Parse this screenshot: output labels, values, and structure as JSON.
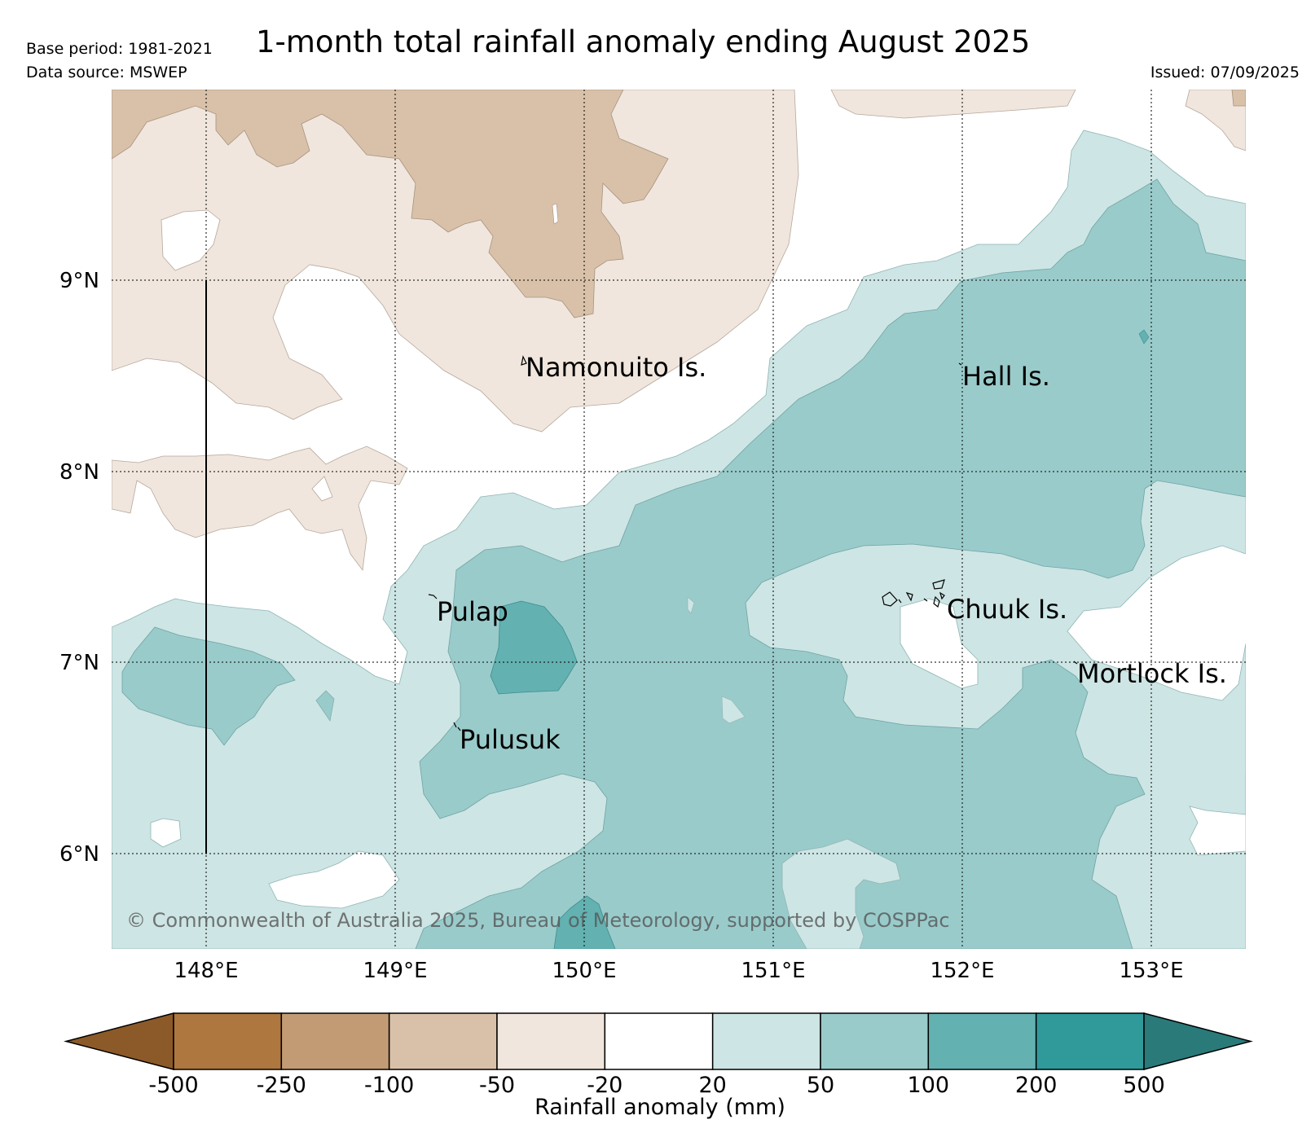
{
  "header": {
    "title": "1-month total rainfall anomaly ending August 2025",
    "base_period": "Base period: 1981-2021",
    "data_source": "Data source: MSWEP",
    "issued": "Issued: 07/09/2025"
  },
  "map": {
    "lat_range": [
      5.5,
      10.0
    ],
    "lon_range": [
      147.5,
      153.5
    ],
    "lat_ticks": [
      {
        "value": 9,
        "label": "9°N"
      },
      {
        "value": 8,
        "label": "8°N"
      },
      {
        "value": 7,
        "label": "7°N"
      },
      {
        "value": 6,
        "label": "6°N"
      }
    ],
    "lon_ticks": [
      {
        "value": 148,
        "label": "148°E"
      },
      {
        "value": 149,
        "label": "149°E"
      },
      {
        "value": 150,
        "label": "150°E"
      },
      {
        "value": 151,
        "label": "151°E"
      },
      {
        "value": 152,
        "label": "152°E"
      },
      {
        "value": 153,
        "label": "153°E"
      }
    ],
    "places": [
      {
        "name": "Namonuito Is."
      },
      {
        "name": "Hall Is."
      },
      {
        "name": "Pulap"
      },
      {
        "name": "Chuuk Is."
      },
      {
        "name": "Mortlock Is."
      },
      {
        "name": "Pulusuk"
      }
    ],
    "copyright": "© Commonwealth of Australia 2025, Bureau of Meteorology, supported by COSPPac"
  },
  "colorbar": {
    "label": "Rainfall anomaly (mm)",
    "ticks": [
      "-500",
      "-250",
      "-100",
      "-50",
      "-20",
      "20",
      "50",
      "100",
      "200",
      "500"
    ],
    "colors": [
      "#8c5a28",
      "#ad773f",
      "#c29b74",
      "#d9c1a9",
      "#f0e6dd",
      "#ffffff",
      "#cde5e4",
      "#9acbcb",
      "#63b1b1",
      "#30999a",
      "#2a7a7a"
    ]
  },
  "legend_colors": {
    "very_dry": "#d9c1a9",
    "dry": "#f0e6dd",
    "neutral": "#ffffff",
    "wet": "#cde5e4",
    "wetter": "#9acbcb",
    "very_wet": "#63b1b1"
  }
}
